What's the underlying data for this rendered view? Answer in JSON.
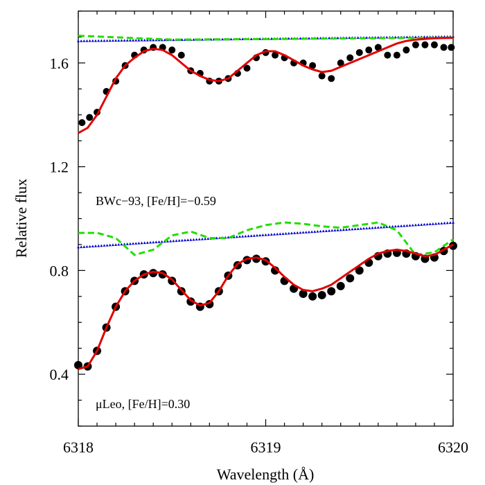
{
  "chart_data": {
    "type": "line",
    "xlabel": "Wavelength (Å)",
    "ylabel": "Relative flux",
    "xlim": [
      6318,
      6320
    ],
    "ylim": [
      0.2,
      1.8
    ],
    "x_ticks": [
      {
        "value": 6318,
        "label": "6318"
      },
      {
        "value": 6319,
        "label": "6319"
      },
      {
        "value": 6320,
        "label": "6320"
      }
    ],
    "y_ticks": [
      {
        "value": 0.4,
        "label": "0.4"
      },
      {
        "value": 0.8,
        "label": "0.8"
      },
      {
        "value": 1.2,
        "label": "1.2"
      },
      {
        "value": 1.6,
        "label": "1.6"
      }
    ],
    "annotations": [
      {
        "text": "BWc−93, [Fe/H]=−0.59",
        "x": 6318.04,
        "y": 1.05
      },
      {
        "text": "μLeo, [Fe/H]=0.30",
        "x": 6318.04,
        "y": 0.27
      }
    ],
    "colors": {
      "observed": "#000000",
      "best_fit": "#e00000",
      "green_dashed": "#22dd00",
      "blue_triangles": "#0000cc"
    },
    "panels": [
      {
        "label": "BWc-93",
        "observed": {
          "style": "filled-circles",
          "x": [
            6318.02,
            6318.06,
            6318.1,
            6318.15,
            6318.2,
            6318.25,
            6318.3,
            6318.35,
            6318.4,
            6318.45,
            6318.5,
            6318.55,
            6318.6,
            6318.65,
            6318.7,
            6318.75,
            6318.8,
            6318.85,
            6318.9,
            6318.95,
            6319.0,
            6319.05,
            6319.1,
            6319.15,
            6319.2,
            6319.25,
            6319.3,
            6319.35,
            6319.4,
            6319.45,
            6319.5,
            6319.55,
            6319.6,
            6319.65,
            6319.7,
            6319.75,
            6319.8,
            6319.85,
            6319.9,
            6319.95,
            6319.99
          ],
          "y": [
            1.37,
            1.39,
            1.41,
            1.49,
            1.53,
            1.59,
            1.63,
            1.65,
            1.66,
            1.66,
            1.65,
            1.63,
            1.57,
            1.56,
            1.53,
            1.53,
            1.54,
            1.56,
            1.58,
            1.62,
            1.64,
            1.63,
            1.62,
            1.6,
            1.6,
            1.59,
            1.55,
            1.54,
            1.6,
            1.62,
            1.64,
            1.65,
            1.66,
            1.63,
            1.63,
            1.65,
            1.67,
            1.67,
            1.67,
            1.66,
            1.66
          ]
        },
        "best_fit": {
          "style": "solid",
          "x": [
            6318.0,
            6318.05,
            6318.1,
            6318.15,
            6318.2,
            6318.25,
            6318.3,
            6318.35,
            6318.4,
            6318.45,
            6318.5,
            6318.55,
            6318.6,
            6318.65,
            6318.7,
            6318.75,
            6318.8,
            6318.85,
            6318.9,
            6318.95,
            6319.0,
            6319.05,
            6319.1,
            6319.15,
            6319.2,
            6319.25,
            6319.3,
            6319.35,
            6319.4,
            6319.45,
            6319.5,
            6319.55,
            6319.6,
            6319.65,
            6319.7,
            6319.75,
            6319.8,
            6319.85,
            6319.9,
            6319.95,
            6320.0
          ],
          "y": [
            1.33,
            1.35,
            1.4,
            1.47,
            1.54,
            1.59,
            1.62,
            1.645,
            1.655,
            1.65,
            1.63,
            1.6,
            1.57,
            1.55,
            1.535,
            1.53,
            1.54,
            1.57,
            1.6,
            1.63,
            1.645,
            1.645,
            1.63,
            1.61,
            1.59,
            1.575,
            1.565,
            1.57,
            1.585,
            1.6,
            1.615,
            1.63,
            1.645,
            1.66,
            1.675,
            1.685,
            1.69,
            1.693,
            1.695,
            1.696,
            1.697
          ]
        },
        "green_dashed": {
          "style": "dashed",
          "x": [
            6318.0,
            6318.5,
            6319.0,
            6319.5,
            6320.0
          ],
          "y": [
            1.705,
            1.69,
            1.692,
            1.695,
            1.698
          ]
        },
        "blue_triangles": {
          "style": "triangle-markers",
          "x": [
            6318.0,
            6320.0
          ],
          "y": [
            1.685,
            1.702
          ]
        }
      },
      {
        "label": "muLeo",
        "observed": {
          "style": "filled-circles",
          "x": [
            6318.0,
            6318.05,
            6318.1,
            6318.15,
            6318.2,
            6318.25,
            6318.3,
            6318.35,
            6318.4,
            6318.45,
            6318.5,
            6318.55,
            6318.6,
            6318.65,
            6318.7,
            6318.75,
            6318.8,
            6318.85,
            6318.9,
            6318.95,
            6319.0,
            6319.05,
            6319.1,
            6319.15,
            6319.2,
            6319.25,
            6319.3,
            6319.35,
            6319.4,
            6319.45,
            6319.5,
            6319.55,
            6319.6,
            6319.65,
            6319.7,
            6319.75,
            6319.8,
            6319.85,
            6319.9,
            6319.95,
            6320.0
          ],
          "y": [
            0.435,
            0.43,
            0.49,
            0.58,
            0.66,
            0.72,
            0.76,
            0.785,
            0.79,
            0.785,
            0.76,
            0.72,
            0.68,
            0.66,
            0.67,
            0.72,
            0.78,
            0.82,
            0.84,
            0.845,
            0.835,
            0.8,
            0.76,
            0.73,
            0.71,
            0.7,
            0.705,
            0.72,
            0.74,
            0.77,
            0.8,
            0.83,
            0.855,
            0.865,
            0.868,
            0.865,
            0.855,
            0.845,
            0.85,
            0.875,
            0.895
          ]
        },
        "best_fit": {
          "style": "solid",
          "x": [
            6318.0,
            6318.05,
            6318.1,
            6318.15,
            6318.2,
            6318.25,
            6318.3,
            6318.35,
            6318.4,
            6318.45,
            6318.5,
            6318.55,
            6318.6,
            6318.65,
            6318.7,
            6318.75,
            6318.8,
            6318.85,
            6318.9,
            6318.95,
            6319.0,
            6319.05,
            6319.1,
            6319.15,
            6319.2,
            6319.25,
            6319.3,
            6319.35,
            6319.4,
            6319.45,
            6319.5,
            6319.55,
            6319.6,
            6319.65,
            6319.7,
            6319.75,
            6319.8,
            6319.85,
            6319.9,
            6319.95,
            6320.0
          ],
          "y": [
            0.42,
            0.43,
            0.49,
            0.58,
            0.66,
            0.72,
            0.76,
            0.785,
            0.795,
            0.79,
            0.765,
            0.725,
            0.685,
            0.665,
            0.675,
            0.72,
            0.78,
            0.825,
            0.845,
            0.85,
            0.84,
            0.81,
            0.775,
            0.745,
            0.725,
            0.72,
            0.73,
            0.745,
            0.77,
            0.795,
            0.82,
            0.845,
            0.865,
            0.875,
            0.88,
            0.875,
            0.865,
            0.855,
            0.86,
            0.88,
            0.9
          ]
        },
        "green_dashed": {
          "style": "dashed",
          "x": [
            6318.0,
            6318.1,
            6318.2,
            6318.3,
            6318.4,
            6318.5,
            6318.6,
            6318.7,
            6318.8,
            6318.9,
            6319.0,
            6319.1,
            6319.2,
            6319.3,
            6319.4,
            6319.5,
            6319.6,
            6319.7,
            6319.8,
            6319.9,
            6320.0
          ],
          "y": [
            0.945,
            0.945,
            0.925,
            0.86,
            0.88,
            0.935,
            0.95,
            0.925,
            0.925,
            0.955,
            0.975,
            0.985,
            0.98,
            0.97,
            0.965,
            0.975,
            0.985,
            0.955,
            0.86,
            0.87,
            0.92
          ]
        },
        "blue_triangles": {
          "style": "triangle-markers",
          "x": [
            6318.0,
            6320.0
          ],
          "y": [
            0.89,
            0.985
          ]
        }
      }
    ]
  }
}
